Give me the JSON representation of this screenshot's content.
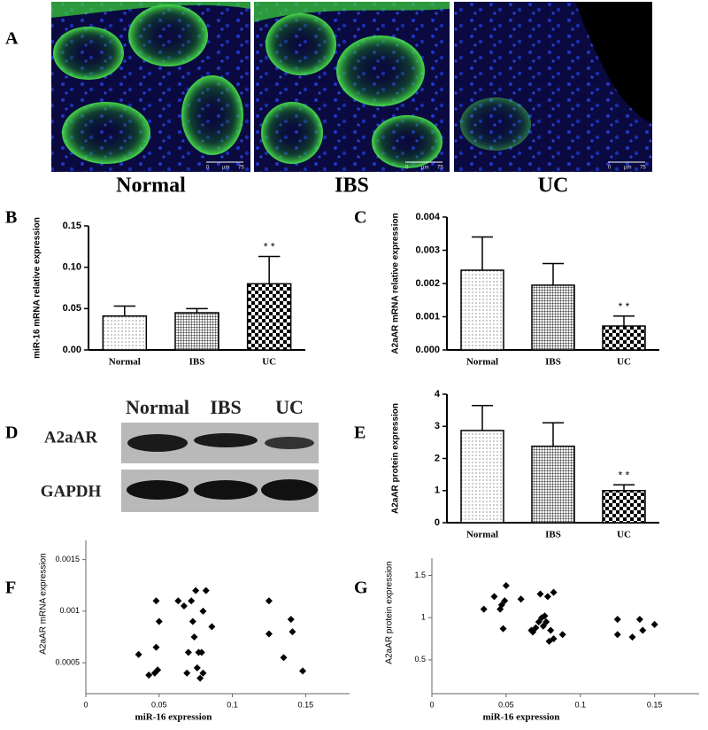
{
  "figure": {
    "panel_labels": [
      "A",
      "B",
      "C",
      "D",
      "E",
      "F",
      "G"
    ],
    "micrographs": {
      "labels": [
        "Normal",
        "IBS",
        "UC"
      ],
      "scale_bar": [
        "0",
        "µm",
        "75"
      ]
    },
    "blot": {
      "lanes": [
        "Normal",
        "IBS",
        "UC"
      ],
      "rows": [
        "A2aAR",
        "GAPDH"
      ]
    }
  },
  "chart_data": [
    {
      "type": "bar",
      "y_label": "miR-16 mRNA relative expression",
      "categories": [
        "Normal",
        "IBS",
        "UC"
      ],
      "values": [
        0.041,
        0.045,
        0.08
      ],
      "errors": [
        0.012,
        0.005,
        0.033
      ],
      "patterns": [
        "dots",
        "grid",
        "checker"
      ],
      "color": "#000000",
      "annotation": "* *",
      "ylim": [
        0,
        0.15
      ],
      "yticks": [
        {
          "value": 0,
          "label": "0.00"
        },
        0.05,
        {
          "value": 0.1,
          "label": "0.10"
        },
        0.15
      ]
    },
    {
      "type": "bar",
      "y_label": "A2aAR mRNA relative expression",
      "categories": [
        "Normal",
        "IBS",
        "UC"
      ],
      "values": [
        0.0024,
        0.00195,
        0.00072
      ],
      "errors": [
        0.001,
        0.00065,
        0.0003
      ],
      "patterns": [
        "dots",
        "grid",
        "checker"
      ],
      "color": "#000000",
      "annotation": "* *",
      "ylim": [
        0,
        0.004
      ],
      "yticks": [
        {
          "value": 0,
          "label": "0.000"
        },
        0.001,
        0.002,
        0.003,
        0.004
      ]
    },
    {
      "type": "bar",
      "y_label": "A2aAR protein expression",
      "categories": [
        "Normal",
        "IBS",
        "UC"
      ],
      "values": [
        2.87,
        2.38,
        1.0
      ],
      "errors": [
        0.78,
        0.73,
        0.18
      ],
      "patterns": [
        "dots",
        "grid",
        "checker"
      ],
      "color": "#000000",
      "annotation": "* *",
      "ylim": [
        0,
        4
      ],
      "yticks": [
        0,
        1,
        2,
        3,
        4
      ]
    },
    {
      "type": "scatter",
      "x_label": "miR-16 expression",
      "y_label": "A2aAR mRNA expression",
      "color": "#000000",
      "x": [
        0.036,
        0.043,
        0.047,
        0.049,
        0.048,
        0.048,
        0.05,
        0.063,
        0.067,
        0.069,
        0.07,
        0.072,
        0.073,
        0.074,
        0.075,
        0.076,
        0.077,
        0.078,
        0.079,
        0.08,
        0.08,
        0.082,
        0.086,
        0.125,
        0.125,
        0.135,
        0.14,
        0.141,
        0.148
      ],
      "values": [
        0.00058,
        0.00038,
        0.0004,
        0.00043,
        0.00065,
        0.0011,
        0.0009,
        0.0011,
        0.00105,
        0.0004,
        0.0006,
        0.0011,
        0.0009,
        0.00075,
        0.0012,
        0.00045,
        0.0006,
        0.00035,
        0.0006,
        0.0004,
        0.001,
        0.0012,
        0.00085,
        0.0011,
        0.00078,
        0.00055,
        0.00092,
        0.0008,
        0.00042
      ],
      "xlim": [
        0,
        0.18
      ],
      "xticks": [
        0,
        0.05,
        0.1,
        0.15
      ],
      "ylim": [
        0.0002,
        0.0016
      ],
      "yticks": [
        0.0005,
        0.001,
        0.0015
      ]
    },
    {
      "type": "scatter",
      "x_label": "miR-16 expression",
      "y_label": "A2aAR protein expression",
      "color": "#000000",
      "x": [
        0.035,
        0.042,
        0.046,
        0.047,
        0.048,
        0.049,
        0.05,
        0.06,
        0.067,
        0.068,
        0.07,
        0.072,
        0.073,
        0.074,
        0.075,
        0.076,
        0.077,
        0.078,
        0.079,
        0.08,
        0.082,
        0.082,
        0.088,
        0.125,
        0.125,
        0.135,
        0.14,
        0.142,
        0.15
      ],
      "values": [
        1.1,
        1.25,
        1.1,
        1.15,
        0.87,
        1.2,
        1.38,
        1.22,
        0.85,
        0.83,
        0.88,
        0.95,
        1.28,
        1.0,
        0.9,
        1.02,
        0.95,
        1.25,
        0.72,
        0.85,
        1.3,
        0.75,
        0.8,
        0.98,
        0.8,
        0.77,
        0.98,
        0.85,
        0.92
      ],
      "xlim": [
        0,
        0.18
      ],
      "xticks": [
        0,
        0.05,
        0.1,
        0.15
      ],
      "ylim": [
        0.1,
        1.6
      ],
      "yticks": [
        0.5,
        1,
        1.5
      ]
    }
  ]
}
